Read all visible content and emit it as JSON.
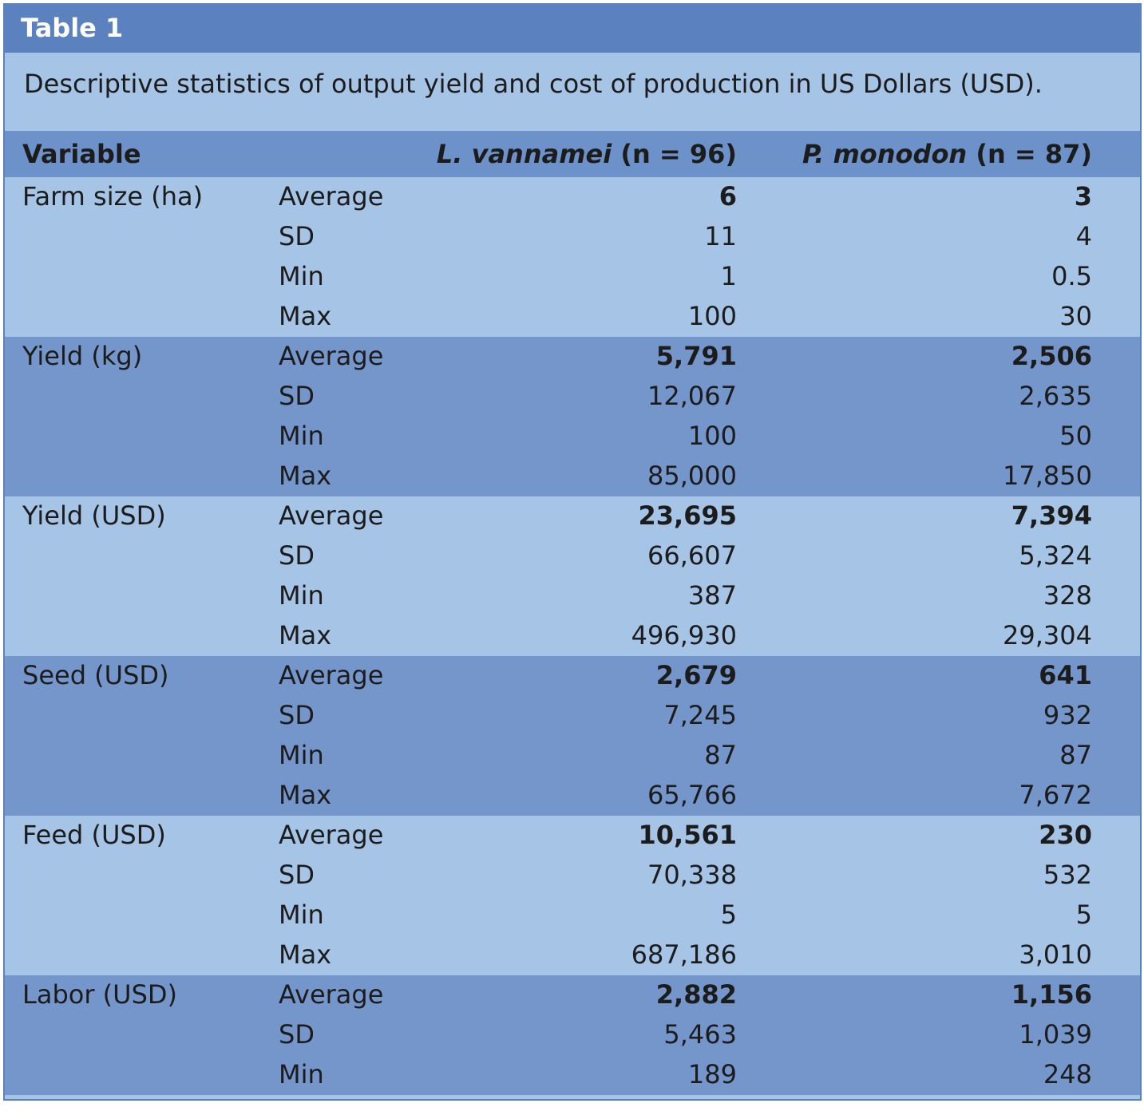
{
  "table": {
    "label": "Table 1",
    "caption": "Descriptive statistics of output yield and cost of production in US Dollars (USD).",
    "headers": {
      "variable": "Variable",
      "col1_species": "L. vannamei",
      "col1_n": " (n = 96)",
      "col2_species": "P. monodon",
      "col2_n": " (n = 87)"
    },
    "groups": [
      {
        "name": "Farm size (ha)",
        "rows": [
          {
            "stat": "Average",
            "v1": "6",
            "v2": "3"
          },
          {
            "stat": "SD",
            "v1": "11",
            "v2": "4"
          },
          {
            "stat": "Min",
            "v1": "1",
            "v2": "0.5"
          },
          {
            "stat": "Max",
            "v1": "100",
            "v2": "30"
          }
        ]
      },
      {
        "name": "Yield (kg)",
        "rows": [
          {
            "stat": "Average",
            "v1": "5,791",
            "v2": "2,506"
          },
          {
            "stat": "SD",
            "v1": "12,067",
            "v2": "2,635"
          },
          {
            "stat": "Min",
            "v1": "100",
            "v2": "50"
          },
          {
            "stat": "Max",
            "v1": "85,000",
            "v2": "17,850"
          }
        ]
      },
      {
        "name": "Yield (USD)",
        "rows": [
          {
            "stat": "Average",
            "v1": "23,695",
            "v2": "7,394"
          },
          {
            "stat": "SD",
            "v1": "66,607",
            "v2": "5,324"
          },
          {
            "stat": "Min",
            "v1": "387",
            "v2": "328"
          },
          {
            "stat": "Max",
            "v1": "496,930",
            "v2": "29,304"
          }
        ]
      },
      {
        "name": "Seed (USD)",
        "rows": [
          {
            "stat": "Average",
            "v1": "2,679",
            "v2": "641"
          },
          {
            "stat": "SD",
            "v1": "7,245",
            "v2": "932"
          },
          {
            "stat": "Min",
            "v1": "87",
            "v2": "87"
          },
          {
            "stat": "Max",
            "v1": "65,766",
            "v2": "7,672"
          }
        ]
      },
      {
        "name": "Feed (USD)",
        "rows": [
          {
            "stat": "Average",
            "v1": "10,561",
            "v2": "230"
          },
          {
            "stat": "SD",
            "v1": "70,338",
            "v2": "532"
          },
          {
            "stat": "Min",
            "v1": "5",
            "v2": "5"
          },
          {
            "stat": "Max",
            "v1": "687,186",
            "v2": "3,010"
          }
        ]
      },
      {
        "name": "Labor (USD)",
        "rows": [
          {
            "stat": "Average",
            "v1": "2,882",
            "v2": "1,156"
          },
          {
            "stat": "SD",
            "v1": "5,463",
            "v2": "1,039"
          },
          {
            "stat": "Min",
            "v1": "189",
            "v2": "248"
          }
        ]
      }
    ]
  }
}
